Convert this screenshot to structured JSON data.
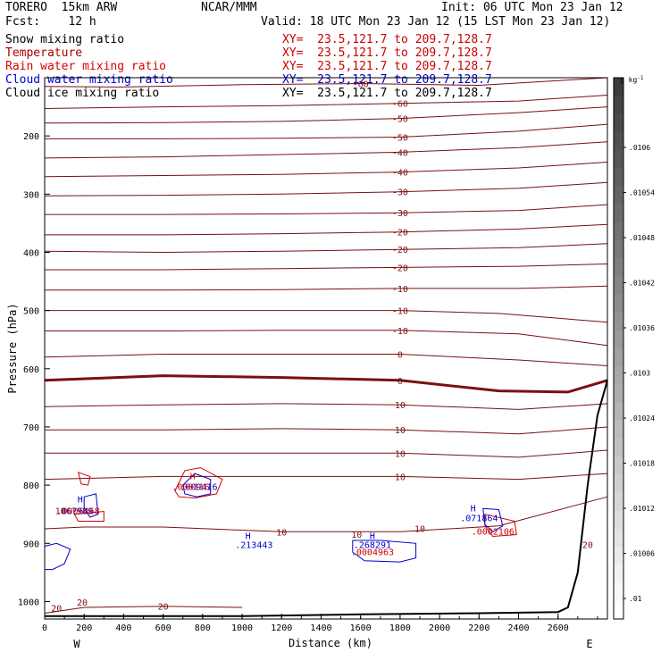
{
  "header": {
    "model": "TORERO  15km ARW",
    "org": "NCAR/MMM",
    "init": "Init: 06 UTC Mon 23 Jan 12",
    "fcst": "Fcst:    12 h",
    "valid": "Valid: 18 UTC Mon 23 Jan 12 (15 LST Mon 23 Jan 12)"
  },
  "legend": [
    {
      "label": "Snow mixing ratio",
      "xy": "XY=  23.5,121.7 to 209.7,128.7",
      "color": "#000000",
      "xy_color": "#cc0000"
    },
    {
      "label": "Temperature",
      "xy": "XY=  23.5,121.7 to 209.7,128.7",
      "color": "#aa0000",
      "xy_color": "#cc0000"
    },
    {
      "label": "Rain water mixing ratio",
      "xy": "XY=  23.5,121.7 to 209.7,128.7",
      "color": "#dd0000",
      "xy_color": "#cc0000"
    },
    {
      "label": "Cloud water mixing ratio",
      "xy": "XY=  23.5,121.7 to 209.7,128.7",
      "color": "#0000cc",
      "xy_color": "#0000cc"
    },
    {
      "label": "Cloud ice mixing ratio",
      "xy": "XY=  23.5,121.7 to 209.7,128.7",
      "color": "#000000",
      "xy_color": "#000000"
    }
  ],
  "colors": {
    "temperature": "#7a1010",
    "rain": "#cc0000",
    "cloud_water": "#0000cc",
    "terrain": "#000000"
  },
  "chart_data": {
    "type": "cross-section",
    "xlabel": "Distance (km)",
    "ylabel": "Pressure (hPa)",
    "xlim": [
      0,
      2850
    ],
    "ylim": [
      1030,
      100
    ],
    "x_ticks": [
      0,
      200,
      400,
      600,
      800,
      1000,
      1200,
      1400,
      1600,
      1800,
      2000,
      2200,
      2400,
      2600
    ],
    "y_ticks": [
      200,
      300,
      400,
      500,
      600,
      700,
      800,
      900,
      1000
    ],
    "x_end_labels": {
      "left": "W",
      "right": "E"
    },
    "colorbar": {
      "unit": "g kg",
      "unit_exp": "-1",
      "ticks": [
        ".0106",
        ".01054",
        ".01048",
        ".01042",
        ".01036",
        ".0103",
        ".01024",
        ".01018",
        ".01012",
        ".01006",
        ".01"
      ]
    },
    "temperature_contours": [
      {
        "label": "-60",
        "points": [
          [
            0,
            115
          ],
          [
            400,
            116
          ],
          [
            1000,
            112
          ],
          [
            1600,
            110
          ],
          [
            2200,
            113
          ],
          [
            2850,
            100
          ]
        ]
      },
      {
        "label": "-60",
        "points": [
          [
            0,
            153
          ],
          [
            600,
            150
          ],
          [
            1200,
            148
          ],
          [
            1800,
            144
          ],
          [
            2400,
            140
          ],
          [
            2850,
            130
          ]
        ]
      },
      {
        "label": "-50",
        "points": [
          [
            0,
            178
          ],
          [
            600,
            177
          ],
          [
            1200,
            175
          ],
          [
            1800,
            170
          ],
          [
            2400,
            160
          ],
          [
            2850,
            150
          ]
        ]
      },
      {
        "label": "-50",
        "points": [
          [
            0,
            205
          ],
          [
            600,
            205
          ],
          [
            1200,
            204
          ],
          [
            1800,
            202
          ],
          [
            2400,
            192
          ],
          [
            2850,
            180
          ]
        ]
      },
      {
        "label": "-40",
        "points": [
          [
            0,
            238
          ],
          [
            600,
            236
          ],
          [
            1200,
            232
          ],
          [
            1800,
            228
          ],
          [
            2400,
            220
          ],
          [
            2850,
            210
          ]
        ]
      },
      {
        "label": "-40",
        "points": [
          [
            0,
            270
          ],
          [
            600,
            268
          ],
          [
            1200,
            266
          ],
          [
            1800,
            262
          ],
          [
            2400,
            255
          ],
          [
            2850,
            245
          ]
        ]
      },
      {
        "label": "-30",
        "points": [
          [
            0,
            303
          ],
          [
            600,
            302
          ],
          [
            1200,
            300
          ],
          [
            1800,
            296
          ],
          [
            2400,
            290
          ],
          [
            2850,
            280
          ]
        ]
      },
      {
        "label": "-30",
        "points": [
          [
            0,
            335
          ],
          [
            600,
            335
          ],
          [
            1200,
            334
          ],
          [
            1800,
            332
          ],
          [
            2400,
            328
          ],
          [
            2850,
            318
          ]
        ]
      },
      {
        "label": "-20",
        "points": [
          [
            0,
            370
          ],
          [
            600,
            370
          ],
          [
            1200,
            368
          ],
          [
            1800,
            365
          ],
          [
            2400,
            360
          ],
          [
            2850,
            352
          ]
        ]
      },
      {
        "label": "-20",
        "points": [
          [
            0,
            398
          ],
          [
            600,
            400
          ],
          [
            1200,
            398
          ],
          [
            1800,
            395
          ],
          [
            2400,
            392
          ],
          [
            2850,
            385
          ]
        ]
      },
      {
        "label": "-20",
        "points": [
          [
            0,
            430
          ],
          [
            600,
            430
          ],
          [
            1200,
            428
          ],
          [
            1800,
            426
          ],
          [
            2400,
            424
          ],
          [
            2850,
            420
          ]
        ]
      },
      {
        "label": "-10",
        "points": [
          [
            0,
            465
          ],
          [
            600,
            465
          ],
          [
            1200,
            464
          ],
          [
            1800,
            462
          ],
          [
            2400,
            462
          ],
          [
            2850,
            458
          ]
        ]
      },
      {
        "label": "-10",
        "points": [
          [
            0,
            500
          ],
          [
            600,
            500
          ],
          [
            1200,
            500
          ],
          [
            1800,
            500
          ],
          [
            2300,
            505
          ],
          [
            2850,
            520
          ]
        ]
      },
      {
        "label": "-10",
        "points": [
          [
            0,
            535
          ],
          [
            600,
            535
          ],
          [
            1200,
            534
          ],
          [
            1800,
            534
          ],
          [
            2400,
            540
          ],
          [
            2850,
            560
          ]
        ]
      },
      {
        "label": "0",
        "bold": true,
        "points": [
          [
            0,
            620
          ],
          [
            600,
            612
          ],
          [
            1200,
            615
          ],
          [
            1800,
            620
          ],
          [
            2300,
            638
          ],
          [
            2650,
            640
          ],
          [
            2850,
            620
          ]
        ]
      },
      {
        "label": "0",
        "points": [
          [
            0,
            580
          ],
          [
            600,
            575
          ],
          [
            1200,
            575
          ],
          [
            1800,
            575
          ],
          [
            2400,
            585
          ],
          [
            2850,
            595
          ]
        ]
      },
      {
        "label": "10",
        "points": [
          [
            0,
            665
          ],
          [
            600,
            662
          ],
          [
            1200,
            660
          ],
          [
            1800,
            662
          ],
          [
            2400,
            670
          ],
          [
            2850,
            660
          ]
        ]
      },
      {
        "label": "10",
        "points": [
          [
            0,
            705
          ],
          [
            600,
            705
          ],
          [
            1200,
            703
          ],
          [
            1800,
            705
          ],
          [
            2400,
            712
          ],
          [
            2850,
            700
          ]
        ]
      },
      {
        "label": "10",
        "points": [
          [
            0,
            745
          ],
          [
            600,
            745
          ],
          [
            1200,
            745
          ],
          [
            1800,
            745
          ],
          [
            2400,
            752
          ],
          [
            2850,
            740
          ]
        ]
      },
      {
        "label": "10",
        "points": [
          [
            0,
            790
          ],
          [
            600,
            785
          ],
          [
            1200,
            785
          ],
          [
            1800,
            785
          ],
          [
            2400,
            790
          ],
          [
            2850,
            780
          ]
        ]
      },
      {
        "label": "10",
        "points": [
          [
            0,
            875
          ],
          [
            200,
            872
          ],
          [
            600,
            872
          ],
          [
            1200,
            880
          ],
          [
            1800,
            880
          ],
          [
            2300,
            870
          ],
          [
            2850,
            820
          ]
        ]
      },
      {
        "label": "20",
        "points": [
          [
            0,
            1020
          ],
          [
            200,
            1010
          ],
          [
            600,
            1008
          ],
          [
            1000,
            1010
          ]
        ]
      }
    ],
    "terrain": [
      [
        0,
        1025
      ],
      [
        400,
        1025
      ],
      [
        1000,
        1025
      ],
      [
        1600,
        1022
      ],
      [
        2200,
        1020
      ],
      [
        2600,
        1018
      ],
      [
        2650,
        1010
      ],
      [
        2700,
        950
      ],
      [
        2750,
        800
      ],
      [
        2800,
        680
      ],
      [
        2850,
        620
      ]
    ],
    "annotations": [
      {
        "text": "H",
        "kind": "high",
        "x": 180,
        "y": 830,
        "color": "#0000cc"
      },
      {
        "text": ".067989",
        "x": 150,
        "y": 850,
        "color": "#0000cc"
      },
      {
        "text": "10",
        "x": 80,
        "y": 850,
        "color": "#7a1010"
      },
      {
        "text": ".0006468",
        "x": 170,
        "y": 850,
        "color": "#cc0000"
      },
      {
        "text": "H",
        "kind": "high",
        "x": 750,
        "y": 790,
        "color": "#cc0000"
      },
      {
        "text": ".009416",
        "x": 780,
        "y": 808,
        "color": "#0000cc"
      },
      {
        "text": ".000116",
        "x": 740,
        "y": 808,
        "color": "#cc0000"
      },
      {
        "text": "H",
        "kind": "high",
        "x": 1030,
        "y": 893,
        "color": "#0000cc"
      },
      {
        "text": ".213443",
        "x": 1060,
        "y": 908,
        "color": "#0000cc"
      },
      {
        "text": "10",
        "x": 1580,
        "y": 890,
        "color": "#7a1010"
      },
      {
        "text": "H",
        "kind": "high",
        "x": 1660,
        "y": 893,
        "color": "#0000cc"
      },
      {
        "text": ".268291",
        "x": 1660,
        "y": 908,
        "color": "#0000cc"
      },
      {
        "text": ".0004963",
        "x": 1660,
        "y": 920,
        "color": "#cc0000"
      },
      {
        "text": "10",
        "x": 1900,
        "y": 880,
        "color": "#7a1010"
      },
      {
        "text": "H",
        "kind": "high",
        "x": 2170,
        "y": 845,
        "color": "#0000cc"
      },
      {
        "text": ".071864",
        "x": 2200,
        "y": 862,
        "color": "#0000cc"
      },
      {
        "text": ".0002106",
        "x": 2270,
        "y": 885,
        "color": "#cc0000"
      },
      {
        "text": "20",
        "x": 2750,
        "y": 908,
        "color": "#7a1010"
      },
      {
        "text": "20",
        "x": 60,
        "y": 1017,
        "color": "#7a1010"
      },
      {
        "text": "20",
        "x": 190,
        "y": 1007,
        "color": "#7a1010"
      }
    ],
    "cloud_water_contours": [
      {
        "points": [
          [
            0,
            905
          ],
          [
            60,
            900
          ],
          [
            130,
            910
          ],
          [
            100,
            935
          ],
          [
            40,
            945
          ],
          [
            0,
            945
          ]
        ]
      },
      {
        "points": [
          [
            200,
            820
          ],
          [
            260,
            815
          ],
          [
            270,
            850
          ],
          [
            230,
            855
          ],
          [
            200,
            840
          ]
        ]
      },
      {
        "points": [
          [
            700,
            800
          ],
          [
            760,
            780
          ],
          [
            840,
            790
          ],
          [
            840,
            815
          ],
          [
            770,
            820
          ],
          [
            710,
            815
          ]
        ]
      },
      {
        "points": [
          [
            1560,
            895
          ],
          [
            1700,
            895
          ],
          [
            1880,
            900
          ],
          [
            1880,
            925
          ],
          [
            1800,
            932
          ],
          [
            1620,
            930
          ],
          [
            1560,
            915
          ]
        ]
      },
      {
        "points": [
          [
            2220,
            840
          ],
          [
            2300,
            842
          ],
          [
            2320,
            870
          ],
          [
            2270,
            880
          ],
          [
            2230,
            868
          ]
        ]
      }
    ],
    "rain_contours": [
      {
        "points": [
          [
            170,
            778
          ],
          [
            230,
            785
          ],
          [
            220,
            800
          ],
          [
            185,
            798
          ]
        ]
      },
      {
        "points": [
          [
            660,
            810
          ],
          [
            710,
            775
          ],
          [
            790,
            770
          ],
          [
            900,
            790
          ],
          [
            870,
            815
          ],
          [
            760,
            822
          ],
          [
            680,
            820
          ]
        ]
      },
      {
        "points": [
          [
            150,
            850
          ],
          [
            300,
            845
          ],
          [
            300,
            862
          ],
          [
            170,
            862
          ]
        ]
      },
      {
        "points": [
          [
            2230,
            850
          ],
          [
            2380,
            862
          ],
          [
            2390,
            885
          ],
          [
            2270,
            888
          ],
          [
            2230,
            870
          ]
        ]
      }
    ]
  }
}
